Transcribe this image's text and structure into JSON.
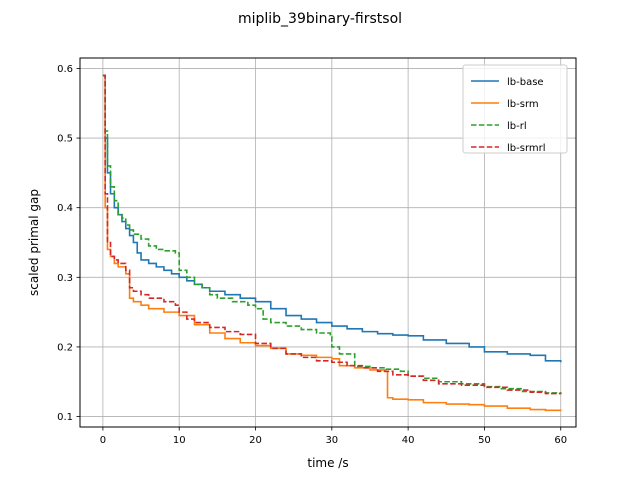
{
  "chart_data": {
    "type": "line",
    "title": "miplib_39binary-firstsol",
    "xlabel": "time /s",
    "ylabel": "scaled primal gap",
    "xlim": [
      -3,
      62
    ],
    "ylim": [
      0.085,
      0.615
    ],
    "xticks": [
      0,
      10,
      20,
      30,
      40,
      50,
      60
    ],
    "yticks": [
      0.1,
      0.2,
      0.3,
      0.4,
      0.5,
      0.6
    ],
    "xtick_labels": [
      "0",
      "10",
      "20",
      "30",
      "40",
      "50",
      "60"
    ],
    "ytick_labels": [
      "0.1",
      "0.2",
      "0.3",
      "0.4",
      "0.5",
      "0.6"
    ],
    "grid": true,
    "legend_position": "top-right",
    "series": [
      {
        "name": "lb-base",
        "color": "#1f77b4",
        "dash": "solid",
        "x": [
          0,
          0.3,
          0.6,
          1.0,
          1.5,
          2.0,
          2.5,
          3.0,
          3.5,
          4.0,
          4.5,
          5.0,
          6.0,
          7.0,
          8.0,
          9.0,
          10.0,
          11.0,
          12.0,
          13.0,
          14.0,
          16.0,
          18.0,
          20.0,
          22.0,
          24.0,
          26.0,
          28.0,
          30.0,
          32.0,
          34.0,
          36.0,
          38.0,
          40.0,
          42.0,
          45.0,
          48.0,
          50.0,
          53.0,
          56.0,
          58.0,
          60.0
        ],
        "y": [
          0.59,
          0.5,
          0.45,
          0.42,
          0.4,
          0.39,
          0.38,
          0.37,
          0.36,
          0.35,
          0.335,
          0.325,
          0.32,
          0.315,
          0.31,
          0.305,
          0.3,
          0.295,
          0.29,
          0.285,
          0.28,
          0.275,
          0.27,
          0.265,
          0.255,
          0.245,
          0.24,
          0.235,
          0.23,
          0.226,
          0.222,
          0.219,
          0.217,
          0.216,
          0.21,
          0.205,
          0.2,
          0.193,
          0.19,
          0.188,
          0.18,
          0.178
        ]
      },
      {
        "name": "lb-srm",
        "color": "#ff7f0e",
        "dash": "solid",
        "x": [
          0,
          0.3,
          0.6,
          1.0,
          1.5,
          2.0,
          3.0,
          3.5,
          4.0,
          5.0,
          6.0,
          8.0,
          10.0,
          12.0,
          14.0,
          16.0,
          18.0,
          20.0,
          22.0,
          24.0,
          26.0,
          28.0,
          30.0,
          31.0,
          33.0,
          35.0,
          37.0,
          37.3,
          38.0,
          40.0,
          42.0,
          45.0,
          48.0,
          50.0,
          53.0,
          56.0,
          58.0,
          60.0
        ],
        "y": [
          0.59,
          0.4,
          0.34,
          0.33,
          0.32,
          0.315,
          0.305,
          0.27,
          0.265,
          0.26,
          0.255,
          0.25,
          0.245,
          0.232,
          0.22,
          0.212,
          0.206,
          0.202,
          0.198,
          0.19,
          0.188,
          0.185,
          0.183,
          0.173,
          0.17,
          0.167,
          0.165,
          0.127,
          0.125,
          0.124,
          0.12,
          0.118,
          0.117,
          0.115,
          0.112,
          0.11,
          0.109,
          0.108
        ]
      },
      {
        "name": "lb-rl",
        "color": "#2ca02c",
        "dash": "dashed",
        "x": [
          0,
          0.3,
          0.6,
          1.0,
          1.5,
          2.0,
          2.5,
          3.0,
          3.5,
          4.0,
          5.0,
          6.0,
          7.0,
          8.0,
          9.5,
          10.0,
          11.0,
          12.0,
          13.0,
          14.0,
          15.0,
          17.0,
          19.0,
          20.0,
          21.0,
          22.0,
          24.0,
          26.0,
          28.0,
          29.8,
          30.0,
          31.0,
          32.0,
          33.0,
          35.0,
          37.0,
          39.0,
          40.0,
          42.0,
          44.0,
          47.0,
          50.0,
          52.0,
          55.0,
          58.0,
          60.0
        ],
        "y": [
          0.59,
          0.51,
          0.46,
          0.43,
          0.41,
          0.39,
          0.385,
          0.375,
          0.368,
          0.362,
          0.355,
          0.345,
          0.34,
          0.338,
          0.335,
          0.31,
          0.3,
          0.29,
          0.285,
          0.275,
          0.27,
          0.265,
          0.26,
          0.255,
          0.24,
          0.235,
          0.23,
          0.225,
          0.22,
          0.215,
          0.2,
          0.19,
          0.19,
          0.172,
          0.17,
          0.168,
          0.165,
          0.158,
          0.155,
          0.15,
          0.147,
          0.143,
          0.14,
          0.136,
          0.134,
          0.133
        ]
      },
      {
        "name": "lb-srmrl",
        "color": "#d62728",
        "dash": "dashed",
        "x": [
          0,
          0.3,
          0.6,
          1.0,
          1.5,
          2.0,
          3.0,
          3.5,
          4.0,
          5.0,
          6.0,
          8.0,
          9.5,
          10.0,
          11.0,
          12.0,
          14.0,
          16.0,
          18.0,
          20.0,
          22.0,
          24.0,
          26.0,
          28.0,
          30.0,
          32.0,
          34.0,
          36.0,
          38.0,
          40.0,
          42.0,
          44.0,
          47.0,
          50.0,
          53.0,
          56.0,
          58.0,
          60.0
        ],
        "y": [
          0.59,
          0.42,
          0.35,
          0.33,
          0.325,
          0.32,
          0.31,
          0.285,
          0.28,
          0.275,
          0.27,
          0.265,
          0.26,
          0.25,
          0.24,
          0.235,
          0.228,
          0.222,
          0.218,
          0.205,
          0.198,
          0.19,
          0.185,
          0.18,
          0.178,
          0.173,
          0.17,
          0.165,
          0.16,
          0.158,
          0.152,
          0.147,
          0.145,
          0.142,
          0.138,
          0.135,
          0.133,
          0.132
        ]
      }
    ]
  }
}
